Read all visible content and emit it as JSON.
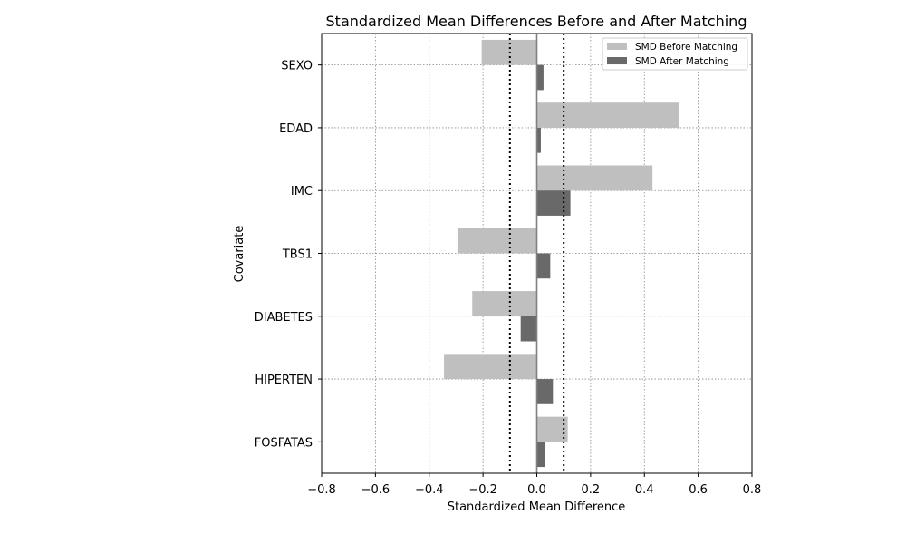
{
  "chart_data": {
    "type": "bar",
    "orientation": "horizontal",
    "title": "Standardized Mean Differences Before and After Matching",
    "xlabel": "Standardized Mean Difference",
    "ylabel": "Covariate",
    "xlim": [
      -0.8,
      0.8
    ],
    "xticks": [
      -0.8,
      -0.6,
      -0.4,
      -0.2,
      0.0,
      0.2,
      0.4,
      0.6,
      0.8
    ],
    "xtick_labels": [
      "−0.8",
      "−0.6",
      "−0.4",
      "−0.2",
      "0.0",
      "0.2",
      "0.4",
      "0.6",
      "0.8"
    ],
    "categories": [
      "SEXO",
      "EDAD",
      "IMC",
      "TBS1",
      "DIABETES",
      "HIPERTEN",
      "FOSFATAS"
    ],
    "series": [
      {
        "name": "SMD Before Matching",
        "color": "#bfbfbf",
        "values": [
          -0.205,
          0.53,
          0.43,
          -0.295,
          -0.24,
          -0.345,
          0.115
        ]
      },
      {
        "name": "SMD After Matching",
        "color": "#696969",
        "values": [
          0.025,
          0.015,
          0.125,
          0.05,
          -0.06,
          0.06,
          0.03
        ]
      }
    ],
    "reference_lines": [
      -0.1,
      0.1
    ],
    "zero_line": 0.0,
    "grid": true,
    "legend_position": "upper right"
  }
}
